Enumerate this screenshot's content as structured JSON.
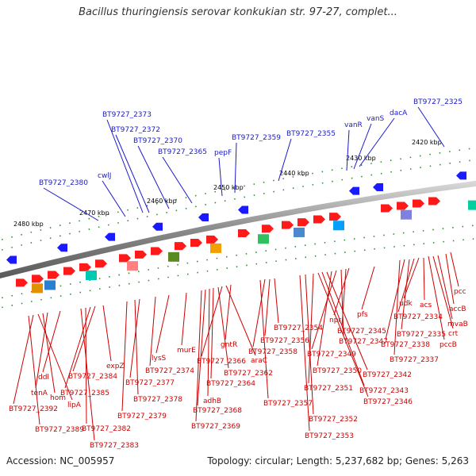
{
  "header": {
    "title": "Bacillus thuringiensis serovar konkukian str. 97-27, complet..."
  },
  "footer": {
    "accession": "Accession: NC_005957",
    "topology": "Topology: circular; Length: 5,237,682 bp; Genes: 5,263"
  },
  "scale_labels": [
    "2420 kbp",
    "2430 kbp",
    "2440 kbp",
    "2450 kbp",
    "2460 kbp",
    "2470 kbp",
    "2480 kbp"
  ],
  "colors": {
    "backbone": "#8a8a8a",
    "forward_gene": "#ff1a1a",
    "reverse_gene": "#1a1aff",
    "top_label": "#1a1acc",
    "bottom_label": "#cc0000",
    "tick": "#2e8b2e"
  },
  "top_labels": [
    "BT9727_2325",
    "dacA",
    "vanS",
    "vanR",
    "BT9727_2355",
    "BT9727_2359",
    "pepF",
    "BT9727_2365",
    "BT9727_2370",
    "BT9727_2372",
    "BT9727_2373",
    "cwlJ",
    "BT9727_2380"
  ],
  "bottom_labels": [
    "pcc",
    "accB",
    "mvaB",
    "crt",
    "pccB",
    "acs",
    "udk",
    "BT9727_2334",
    "BT9727_2335",
    "BT9727_2338",
    "BT9727_2337",
    "pfs",
    "npr",
    "BT9727_2345",
    "BT9727_2347",
    "BT9727_2349",
    "BT9727_2350",
    "BT9727_2342",
    "BT9727_2343",
    "BT9727_2346",
    "BT9727_2351",
    "BT9727_2352",
    "BT9727_2353",
    "BT9727_2354",
    "BT9727_2356",
    "BT9727_2358",
    "BT9727_2357",
    "gntR",
    "araC",
    "BT9727_2366",
    "BT9727_2362",
    "BT9727_2364",
    "adhB",
    "BT9727_2368",
    "BT9727_2369",
    "murE",
    "lysS",
    "BT9727_2374",
    "BT9727_2377",
    "BT9727_2378",
    "BT9727_2379",
    "expZ",
    "BT9727_2384",
    "BT9727_2385",
    "BT9727_2382",
    "BT9727_2383",
    "ddl",
    "tenA",
    "hom",
    "lipA",
    "BT9727_2392",
    "BT9727_2389"
  ]
}
